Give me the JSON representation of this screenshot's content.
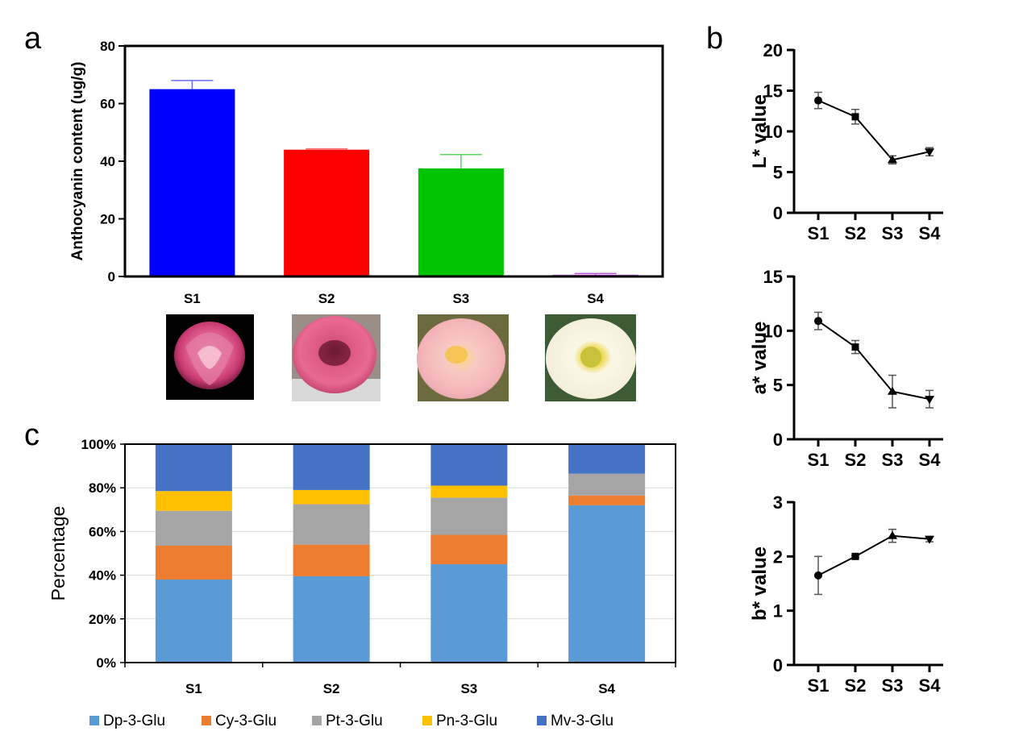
{
  "panel_labels": {
    "a": "a",
    "b": "b",
    "c": "c"
  },
  "colors": {
    "s1_bar": "#0000ff",
    "s2_bar": "#ff0000",
    "s3_bar": "#00c400",
    "s4_bar": "#b94fd6",
    "dp": "#5b9bd5",
    "cy": "#ed7d31",
    "pt": "#a5a5a5",
    "pn": "#ffc000",
    "mv": "#4472c4",
    "axis": "#000000",
    "gridline": "#d9d9d9"
  },
  "flower_images": [
    {
      "stage": "S1",
      "icon": "dark-pink-lotus-bud-photo"
    },
    {
      "stage": "S2",
      "icon": "pink-lotus-photo"
    },
    {
      "stage": "S3",
      "icon": "light-pink-lotus-photo"
    },
    {
      "stage": "S4",
      "icon": "white-lotus-photo"
    }
  ],
  "chart_data": [
    {
      "id": "a",
      "type": "bar",
      "categories": [
        "S1",
        "S2",
        "S3",
        "S4"
      ],
      "values": [
        65,
        44,
        37.5,
        0.6
      ],
      "errors": [
        3,
        0.3,
        4.8,
        0.4
      ],
      "ylabel": "Anthocyanin content (ug/g)",
      "xlabel": "",
      "ylim": [
        0,
        80
      ],
      "yticks": [
        0,
        20,
        40,
        60,
        80
      ],
      "grid": false
    },
    {
      "id": "b1",
      "type": "line",
      "categories": [
        "S1",
        "S2",
        "S3",
        "S4"
      ],
      "values": [
        13.8,
        11.8,
        6.5,
        7.5
      ],
      "errors": [
        1.0,
        0.9,
        0.5,
        0.5
      ],
      "markers": [
        "circle",
        "square",
        "triangle-up",
        "triangle-down"
      ],
      "ylabel": "L* value",
      "ylim": [
        0,
        20
      ],
      "yticks": [
        0,
        5,
        10,
        15,
        20
      ]
    },
    {
      "id": "b2",
      "type": "line",
      "categories": [
        "S1",
        "S2",
        "S3",
        "S4"
      ],
      "values": [
        10.9,
        8.5,
        4.4,
        3.7
      ],
      "errors": [
        0.8,
        0.6,
        1.5,
        0.8
      ],
      "markers": [
        "circle",
        "square",
        "triangle-up",
        "triangle-down"
      ],
      "ylabel": "a* value",
      "ylim": [
        0,
        15
      ],
      "yticks": [
        0,
        5,
        10,
        15
      ]
    },
    {
      "id": "b3",
      "type": "line",
      "categories": [
        "S1",
        "S2",
        "S3",
        "S4"
      ],
      "values": [
        1.65,
        2.0,
        2.38,
        2.32
      ],
      "errors": [
        0.35,
        0.02,
        0.12,
        0.05
      ],
      "markers": [
        "circle",
        "square",
        "triangle-up",
        "triangle-down"
      ],
      "ylabel": "b* value",
      "ylim": [
        0,
        3
      ],
      "yticks": [
        0,
        1,
        2,
        3
      ]
    },
    {
      "id": "c",
      "type": "bar",
      "stacked": true,
      "categories": [
        "S1",
        "S2",
        "S3",
        "S4"
      ],
      "series": [
        {
          "name": "Dp-3-Glu",
          "values": [
            38,
            39.5,
            45,
            72
          ]
        },
        {
          "name": "Cy-3-Glu",
          "values": [
            15.5,
            14.5,
            13.5,
            4.5
          ]
        },
        {
          "name": "Pt-3-Glu",
          "values": [
            16,
            18.5,
            17,
            10
          ]
        },
        {
          "name": "Pn-3-Glu",
          "values": [
            9,
            6.5,
            5.5,
            0
          ]
        },
        {
          "name": "Mv-3-Glu",
          "values": [
            21.5,
            21,
            19,
            13.5
          ]
        }
      ],
      "ylabel": "Percentage",
      "ylim": [
        0,
        100
      ],
      "yticks": [
        "0%",
        "20%",
        "40%",
        "60%",
        "80%",
        "100%"
      ],
      "grid": true,
      "legend_position": "bottom"
    }
  ]
}
